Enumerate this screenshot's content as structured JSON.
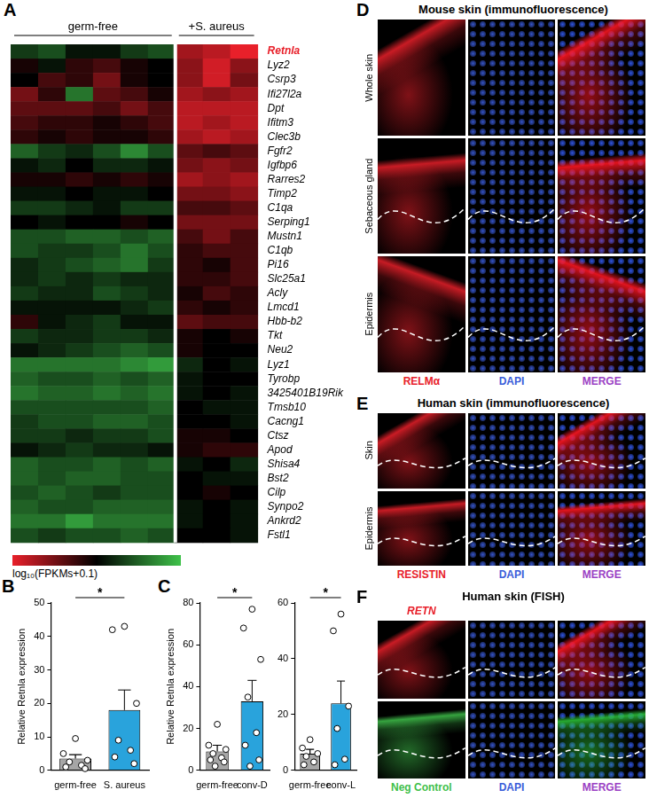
{
  "chart_data": [
    {
      "type": "heatmap",
      "panel": "A",
      "groups": [
        {
          "name": "germ-free",
          "columns": 6
        },
        {
          "name": "+S. aureus",
          "columns": 3
        }
      ],
      "genes": [
        "Retnla",
        "Lyz2",
        "Csrp3",
        "Ifi27l2a",
        "Dpt",
        "Ifitm3",
        "Clec3b",
        "Fgfr2",
        "Igfbp6",
        "Rarres2",
        "Timp2",
        "C1qa",
        "Serping1",
        "Mustn1",
        "C1qb",
        "Pi16",
        "Slc25a1",
        "Acly",
        "Lmcd1",
        "Hbb-b2",
        "Tkt",
        "Neu2",
        "Lyz1",
        "Tyrobp",
        "3425401B19Rik",
        "Tmsb10",
        "Cacng1",
        "Ctsz",
        "Apod",
        "Shisa4",
        "Bst2",
        "Cilp",
        "Synpo2",
        "Ankrd2",
        "Fstl1"
      ],
      "highlight": "Retnla",
      "cells": [
        [
          -0.3,
          -0.4,
          -0.1,
          -0.1,
          -0.3,
          -0.4,
          0.7,
          0.8,
          1.0
        ],
        [
          0.1,
          -0.1,
          0.2,
          0.3,
          0.1,
          0.0,
          0.6,
          0.9,
          0.6
        ],
        [
          0.0,
          0.3,
          0.2,
          0.5,
          0.1,
          0.0,
          0.6,
          0.9,
          0.5
        ],
        [
          0.5,
          0.2,
          -0.6,
          0.4,
          0.3,
          0.1,
          0.7,
          0.6,
          0.7
        ],
        [
          0.4,
          0.4,
          0.4,
          0.3,
          0.5,
          0.3,
          0.8,
          0.8,
          0.8
        ],
        [
          0.3,
          0.2,
          0.2,
          0.1,
          0.2,
          0.3,
          0.8,
          0.7,
          0.8
        ],
        [
          0.2,
          0.1,
          0.2,
          0.1,
          0.1,
          0.2,
          0.7,
          0.8,
          0.7
        ],
        [
          -0.5,
          -0.3,
          -0.2,
          -0.4,
          -0.7,
          -0.4,
          0.4,
          0.3,
          0.4
        ],
        [
          -0.1,
          -0.2,
          0.0,
          -0.2,
          -0.2,
          -0.1,
          0.5,
          0.6,
          0.5
        ],
        [
          0.1,
          0.1,
          0.2,
          0.1,
          0.2,
          0.1,
          0.7,
          0.6,
          0.7
        ],
        [
          -0.1,
          -0.1,
          0.0,
          -0.1,
          -0.1,
          0.0,
          0.5,
          0.5,
          0.6
        ],
        [
          -0.3,
          -0.3,
          -0.2,
          -0.1,
          -0.3,
          -0.3,
          0.3,
          0.3,
          0.4
        ],
        [
          0.0,
          -0.1,
          0.0,
          0.0,
          0.1,
          0.0,
          0.5,
          0.5,
          0.5
        ],
        [
          -0.4,
          -0.4,
          -0.5,
          -0.5,
          -0.4,
          -0.5,
          0.3,
          0.5,
          0.3
        ],
        [
          -0.4,
          -0.3,
          -0.3,
          -0.4,
          -0.6,
          -0.4,
          0.2,
          0.3,
          0.3
        ],
        [
          -0.2,
          -0.3,
          -0.4,
          -0.5,
          -0.6,
          -0.3,
          0.2,
          0.1,
          0.3
        ],
        [
          -0.2,
          -0.3,
          -0.2,
          -0.3,
          -0.2,
          -0.2,
          0.2,
          0.2,
          0.3
        ],
        [
          -0.3,
          -0.2,
          -0.2,
          -0.4,
          -0.3,
          -0.2,
          0.1,
          0.3,
          0.2
        ],
        [
          -0.1,
          -0.1,
          -0.1,
          -0.1,
          -0.2,
          -0.3,
          0.2,
          0.1,
          0.2
        ],
        [
          0.2,
          -0.1,
          -0.2,
          -0.3,
          -0.1,
          -0.1,
          0.4,
          0.3,
          0.3
        ],
        [
          -0.3,
          -0.2,
          -0.2,
          -0.3,
          -0.3,
          -0.2,
          0.1,
          0.0,
          0.1
        ],
        [
          -0.1,
          -0.2,
          -0.3,
          -0.4,
          -0.5,
          -0.4,
          0.1,
          0.0,
          0.0
        ],
        [
          -0.6,
          -0.6,
          -0.6,
          -0.6,
          -0.7,
          -0.8,
          -0.2,
          0.0,
          -0.1
        ],
        [
          -0.5,
          -0.4,
          -0.4,
          -0.5,
          -0.4,
          -0.5,
          -0.1,
          0.0,
          0.0
        ],
        [
          -0.6,
          -0.5,
          -0.5,
          -0.6,
          -0.5,
          -0.6,
          -0.1,
          0.0,
          -0.1
        ],
        [
          -0.4,
          -0.4,
          -0.4,
          -0.4,
          -0.4,
          -0.5,
          0.0,
          -0.1,
          -0.1
        ],
        [
          -0.3,
          -0.4,
          -0.4,
          -0.5,
          -0.5,
          -0.4,
          0.0,
          0.0,
          -0.1
        ],
        [
          -0.3,
          -0.3,
          -0.2,
          -0.3,
          -0.3,
          -0.4,
          0.1,
          0.1,
          0.0
        ],
        [
          -0.1,
          -0.2,
          -0.3,
          -0.2,
          -0.2,
          -0.1,
          0.1,
          0.2,
          0.2
        ],
        [
          -0.5,
          -0.4,
          -0.4,
          -0.5,
          -0.4,
          -0.5,
          -0.1,
          0.0,
          -0.2
        ],
        [
          -0.5,
          -0.4,
          -0.5,
          -0.5,
          -0.4,
          -0.4,
          0.0,
          -0.1,
          -0.1
        ],
        [
          -0.4,
          -0.5,
          -0.4,
          -0.3,
          -0.4,
          -0.4,
          0.0,
          0.1,
          0.0
        ],
        [
          -0.5,
          -0.4,
          -0.4,
          -0.5,
          -0.5,
          -0.5,
          -0.1,
          0.0,
          -0.1
        ],
        [
          -0.6,
          -0.6,
          -0.8,
          -0.6,
          -0.6,
          -0.6,
          -0.1,
          0.0,
          -0.1
        ],
        [
          -0.4,
          -0.3,
          -0.4,
          -0.4,
          -0.5,
          -0.4,
          0.0,
          0.0,
          -0.1
        ]
      ],
      "colorbar": {
        "label": "log₁₀(FPKMs+0.1)",
        "range": [
          -1,
          1
        ],
        "colors": [
          "#3fc24a",
          "#000000",
          "#e8202a"
        ]
      }
    },
    {
      "type": "bar",
      "panel": "B",
      "categories": [
        "germ-free",
        "S. aureus"
      ],
      "values": [
        3.5,
        18
      ],
      "errors": [
        1.2,
        6
      ],
      "points": [
        [
          9.5,
          5,
          3,
          2.5,
          1.5,
          1,
          0.5
        ],
        [
          43,
          42,
          20,
          9,
          6,
          4,
          2
        ]
      ],
      "colors": [
        "#a6a6a6",
        "#29a3dc"
      ],
      "y_label": "Relative Retnla expression",
      "ylim": [
        0,
        50
      ],
      "yticks": [
        0,
        10,
        20,
        30,
        40,
        50
      ],
      "significance": "*"
    },
    {
      "type": "bar",
      "panel": "C",
      "categories": [
        "germ-free",
        "conv-D"
      ],
      "values": [
        9,
        33
      ],
      "errors": [
        3,
        10
      ],
      "points": [
        [
          22,
          12,
          10,
          8,
          6,
          5,
          4,
          2
        ],
        [
          77,
          68,
          53,
          35,
          18,
          12,
          5,
          2
        ]
      ],
      "colors": [
        "#a6a6a6",
        "#29a3dc"
      ],
      "y_label": "Relative Retnla expression",
      "ylim": [
        0,
        80
      ],
      "yticks": [
        0,
        20,
        40,
        60,
        80
      ],
      "significance": "*"
    },
    {
      "type": "bar",
      "categories": [
        "germ-free",
        "conv-L"
      ],
      "values": [
        6,
        24
      ],
      "errors": [
        1.5,
        8
      ],
      "points": [
        [
          11,
          8,
          6,
          5,
          3,
          2
        ],
        [
          56,
          50,
          23,
          15,
          4,
          2
        ]
      ],
      "colors": [
        "#a6a6a6",
        "#29a3dc"
      ],
      "ylim": [
        0,
        60
      ],
      "yticks": [
        0,
        20,
        40,
        60
      ],
      "significance": "*"
    }
  ],
  "images": [
    {
      "panel": "D",
      "title": "Mouse skin (immunofluorescence)",
      "rows": [
        "Whole skin",
        "Sebaceous gland",
        "Epidermis"
      ],
      "bottom_labels": [
        {
          "label": "RELMα",
          "color": "#e8202a"
        },
        {
          "label": "DAPI",
          "color": "#3a5bd9"
        },
        {
          "label": "MERGE",
          "color": "#9b3fc4"
        }
      ]
    },
    {
      "panel": "E",
      "title": "Human skin (immunofluorescence)",
      "rows": [
        "Skin",
        "Epidermis"
      ],
      "bottom_labels": [
        {
          "label": "RESISTIN",
          "color": "#e8202a"
        },
        {
          "label": "DAPI",
          "color": "#3a5bd9"
        },
        {
          "label": "MERGE",
          "color": "#9b3fc4"
        }
      ]
    },
    {
      "panel": "F",
      "title": "Human skin (FISH)",
      "rows": [
        null,
        null
      ],
      "top_labels": [
        {
          "label": "RETN",
          "color": "#e8202a"
        },
        null,
        null
      ],
      "bottom_labels": [
        {
          "label": "Neg Control",
          "color": "#3fbf4a"
        },
        {
          "label": "DAPI",
          "color": "#3a5bd9"
        },
        {
          "label": "MERGE",
          "color": "#9b3fc4"
        }
      ]
    }
  ]
}
